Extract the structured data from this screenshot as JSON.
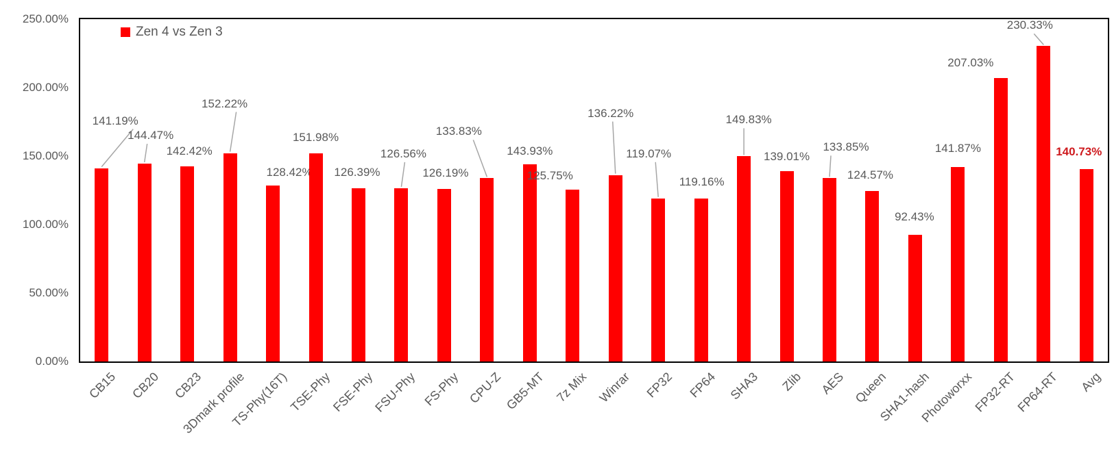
{
  "chart_data": {
    "type": "bar",
    "title": "",
    "xlabel": "",
    "ylabel": "",
    "legend": {
      "label": "Zen 4 vs Zen 3",
      "position": "top-left-inside"
    },
    "categories": [
      "CB15",
      "CB20",
      "CB23",
      "3Dmark profile",
      "TS-Phy(16T)",
      "TSE-Phy",
      "FSE-Phy",
      "FSU-Phy",
      "FS-Phy",
      "CPU-Z",
      "GB5-MT",
      "7z Mix",
      "Winrar",
      "FP32",
      "FP64",
      "SHA3",
      "Zlib",
      "AES",
      "Queen",
      "SHA1-hash",
      "Photoworxx",
      "FP32-RT",
      "FP64-RT",
      "Avg"
    ],
    "values": [
      141.19,
      144.47,
      142.42,
      152.22,
      128.42,
      151.98,
      126.39,
      126.56,
      126.19,
      133.83,
      143.93,
      125.75,
      136.22,
      119.07,
      119.16,
      149.83,
      139.01,
      133.85,
      124.57,
      92.43,
      141.87,
      207.03,
      230.33,
      140.73
    ],
    "data_labels": [
      "141.19%",
      "144.47%",
      "142.42%",
      "152.22%",
      "128.42%",
      "151.98%",
      "126.39%",
      "126.56%",
      "126.19%",
      "133.83%",
      "143.93%",
      "125.75%",
      "136.22%",
      "119.07%",
      "119.16%",
      "149.83%",
      "139.01%",
      "133.85%",
      "124.57%",
      "92.43%",
      "141.87%",
      "207.03%",
      "230.33%",
      "140.73%"
    ],
    "emphasized_category": "Avg",
    "yticks": [
      "0.00%",
      "50.00%",
      "100.00%",
      "150.00%",
      "200.00%",
      "250.00%"
    ],
    "ylim": [
      0,
      250
    ],
    "grid": false,
    "colors": {
      "bar": "#FF0000",
      "emphasis_label": "#CE1A1E",
      "axis_text": "#595959",
      "plot_border": "#000000",
      "leader_line": "#A6A6A6",
      "background": "#FFFFFF"
    }
  }
}
